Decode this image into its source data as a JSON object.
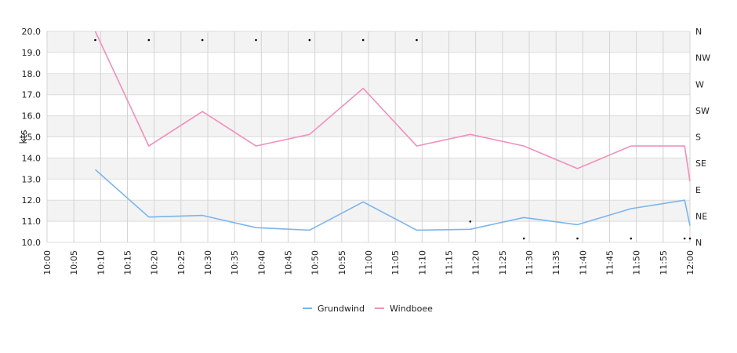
{
  "chart_data": {
    "type": "line",
    "ylabel": "kts",
    "ylim": [
      10.0,
      20.0
    ],
    "y_ticks": [
      "10.0",
      "11.0",
      "12.0",
      "13.0",
      "14.0",
      "15.0",
      "16.0",
      "17.0",
      "18.0",
      "19.0",
      "20.0"
    ],
    "x_range": [
      "10:00",
      "12:00"
    ],
    "x_ticks": [
      "10:00",
      "10:05",
      "10:10",
      "10:15",
      "10:20",
      "10:25",
      "10:30",
      "10:35",
      "10:40",
      "10:45",
      "10:50",
      "10:55",
      "11:00",
      "11:05",
      "11:10",
      "11:15",
      "11:20",
      "11:25",
      "11:30",
      "11:35",
      "11:40",
      "11:45",
      "11:50",
      "11:55",
      "12:00"
    ],
    "y2_ticks": [
      "N",
      "NE",
      "E",
      "SE",
      "S",
      "SW",
      "W",
      "NW",
      "N"
    ],
    "grid": true,
    "legend_position": "bottom",
    "series": [
      {
        "name": "Grundwind",
        "color": "#7cb5ec",
        "points": [
          [
            "10:09",
            13.45
          ],
          [
            "10:19",
            11.2
          ],
          [
            "10:29",
            11.28
          ],
          [
            "10:39",
            10.7
          ],
          [
            "10:49",
            10.58
          ],
          [
            "10:59",
            11.92
          ],
          [
            "11:09",
            10.58
          ],
          [
            "11:19",
            10.62
          ],
          [
            "11:29",
            11.18
          ],
          [
            "11:39",
            10.84
          ],
          [
            "11:49",
            11.6
          ],
          [
            "11:59",
            12.0
          ],
          [
            "12:00",
            10.8
          ]
        ]
      },
      {
        "name": "Windboee",
        "color": "#f28fbd",
        "points": [
          [
            "10:09",
            20.0
          ],
          [
            "10:19",
            14.57
          ],
          [
            "10:29",
            16.2
          ],
          [
            "10:39",
            14.57
          ],
          [
            "10:49",
            15.12
          ],
          [
            "10:59",
            17.3
          ],
          [
            "11:09",
            14.57
          ],
          [
            "11:19",
            15.12
          ],
          [
            "11:29",
            14.57
          ],
          [
            "11:39",
            13.5
          ],
          [
            "11:49",
            14.57
          ],
          [
            "11:59",
            14.57
          ],
          [
            "12:00",
            12.9
          ]
        ]
      }
    ],
    "direction_markers": [
      [
        "10:09",
        "N"
      ],
      [
        "10:19",
        "N"
      ],
      [
        "10:29",
        "N"
      ],
      [
        "10:39",
        "N"
      ],
      [
        "10:49",
        "N"
      ],
      [
        "10:59",
        "N"
      ],
      [
        "11:09",
        "N"
      ],
      [
        "11:19",
        "NE"
      ],
      [
        "11:29",
        "N"
      ],
      [
        "11:39",
        "N"
      ],
      [
        "11:49",
        "N"
      ],
      [
        "11:59",
        "N"
      ],
      [
        "12:00",
        "N"
      ]
    ]
  }
}
